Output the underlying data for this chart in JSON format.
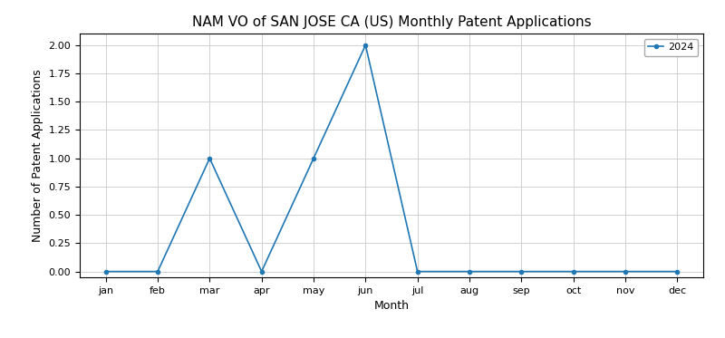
{
  "title": "NAM VO of SAN JOSE CA (US) Monthly Patent Applications",
  "xlabel": "Month",
  "ylabel": "Number of Patent Applications",
  "months": [
    "jan",
    "feb",
    "mar",
    "apr",
    "may",
    "jun",
    "jul",
    "aug",
    "sep",
    "oct",
    "nov",
    "dec"
  ],
  "values_2024": [
    0,
    0,
    1,
    0,
    1,
    2,
    0,
    0,
    0,
    0,
    0,
    0
  ],
  "line_color": "#1f77b4",
  "marker": "o",
  "markersize": 3,
  "linewidth": 1.2,
  "legend_label": "2024",
  "ylim": [
    -0.05,
    2.1
  ],
  "yticks": [
    0.0,
    0.25,
    0.5,
    0.75,
    1.0,
    1.25,
    1.5,
    1.75,
    2.0
  ],
  "title_fontsize": 11,
  "axis_label_fontsize": 9,
  "tick_fontsize": 8,
  "legend_fontsize": 8,
  "background_color": "#ffffff",
  "grid_color": "#d0d0d0",
  "figsize": [
    8.0,
    3.73
  ],
  "dpi": 100
}
